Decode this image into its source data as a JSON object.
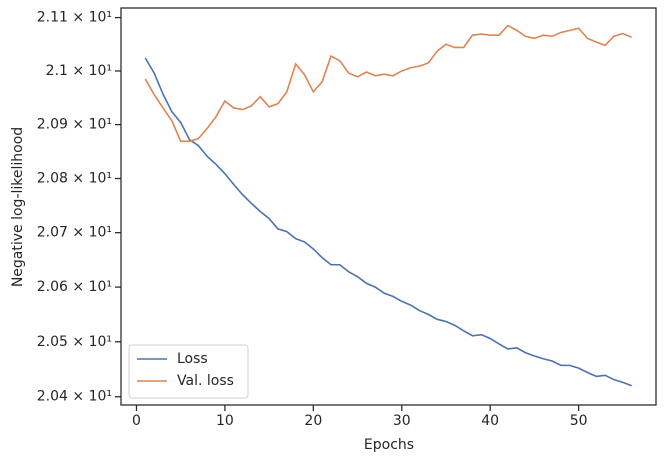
{
  "chart_data": {
    "type": "line",
    "xlabel": "Epochs",
    "ylabel": "Negative log-likelihood",
    "x": [
      1,
      2,
      3,
      4,
      5,
      6,
      7,
      8,
      9,
      10,
      11,
      12,
      13,
      14,
      15,
      16,
      17,
      18,
      19,
      20,
      21,
      22,
      23,
      24,
      25,
      26,
      27,
      28,
      29,
      30,
      31,
      32,
      33,
      34,
      35,
      36,
      37,
      38,
      39,
      40,
      41,
      42,
      43,
      44,
      45,
      46,
      47,
      48,
      49,
      50,
      51,
      52,
      53,
      54,
      55,
      56
    ],
    "series": [
      {
        "name": "Loss",
        "color": "#4c72b0",
        "values": [
          21.024,
          20.996,
          20.957,
          20.924,
          20.904,
          20.872,
          20.861,
          20.841,
          20.826,
          20.809,
          20.789,
          20.77,
          20.754,
          20.739,
          20.726,
          20.707,
          20.702,
          20.689,
          20.683,
          20.67,
          20.654,
          20.641,
          20.641,
          20.628,
          20.619,
          20.607,
          20.6,
          20.589,
          20.583,
          20.574,
          20.567,
          20.557,
          20.55,
          20.541,
          20.537,
          20.53,
          20.52,
          20.511,
          20.513,
          20.506,
          20.496,
          20.487,
          20.489,
          20.48,
          20.474,
          20.469,
          20.465,
          20.457,
          20.457,
          20.452,
          20.444,
          20.437,
          20.439,
          20.431,
          20.426,
          20.42
        ]
      },
      {
        "name": "Val. loss",
        "color": "#dd8452",
        "values": [
          20.985,
          20.956,
          20.931,
          20.907,
          20.869,
          20.869,
          20.874,
          20.893,
          20.915,
          20.944,
          20.931,
          20.928,
          20.935,
          20.952,
          20.933,
          20.939,
          20.961,
          21.013,
          20.993,
          20.961,
          20.98,
          21.028,
          21.019,
          20.996,
          20.989,
          20.998,
          20.991,
          20.994,
          20.991,
          21.0,
          21.006,
          21.009,
          21.015,
          21.037,
          21.05,
          21.044,
          21.044,
          21.067,
          21.069,
          21.067,
          21.067,
          21.085,
          21.076,
          21.065,
          21.061,
          21.067,
          21.065,
          21.072,
          21.076,
          21.08,
          21.061,
          21.054,
          21.048,
          21.065,
          21.07,
          21.063
        ]
      }
    ],
    "xlim": [
      -1.75,
      58.75
    ],
    "xticks": [
      0,
      10,
      20,
      30,
      40,
      50
    ],
    "ylim": [
      20.385,
      21.118
    ],
    "ylog": true,
    "yticks": [
      {
        "value": 20.4,
        "label": "2.04 × 10¹"
      },
      {
        "value": 20.5,
        "label": "2.05 × 10¹"
      },
      {
        "value": 20.6,
        "label": "2.06 × 10¹"
      },
      {
        "value": 20.7,
        "label": "2.07 × 10¹"
      },
      {
        "value": 20.8,
        "label": "2.08 × 10¹"
      },
      {
        "value": 20.9,
        "label": "2.09 × 10¹"
      },
      {
        "value": 21.0,
        "label": "2.1 × 10¹"
      },
      {
        "value": 21.1,
        "label": "2.11 × 10¹"
      }
    ],
    "legend": "lower left"
  }
}
